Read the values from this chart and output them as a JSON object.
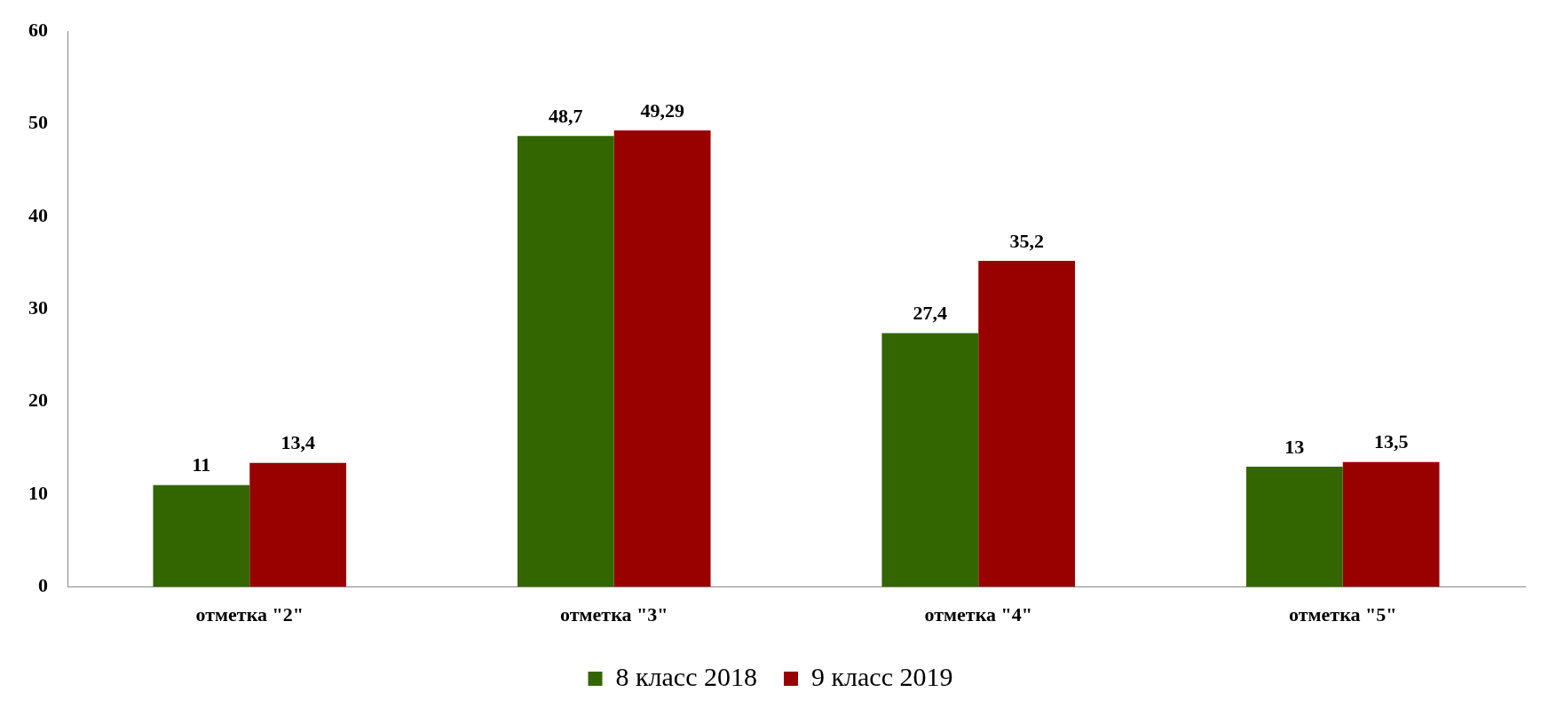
{
  "chart_data": {
    "type": "bar",
    "categories": [
      "отметка \"2\"",
      "отметка \"3\"",
      "отметка \"4\"",
      "отметка \"5\""
    ],
    "series": [
      {
        "name": "8 класс 2018",
        "color": "#336600",
        "values": [
          11,
          48.7,
          27.4,
          13
        ],
        "value_labels": [
          "11",
          "48,7",
          "27,4",
          "13"
        ]
      },
      {
        "name": "9 класс 2019",
        "color": "#990000",
        "values": [
          13.4,
          49.29,
          35.2,
          13.5
        ],
        "value_labels": [
          "13,4",
          "49,29",
          "35,2",
          "13,5"
        ]
      }
    ],
    "ylim": [
      0,
      60
    ],
    "yticks": [
      0,
      10,
      20,
      30,
      40,
      50,
      60
    ],
    "grid": false,
    "legend": "bottom"
  }
}
